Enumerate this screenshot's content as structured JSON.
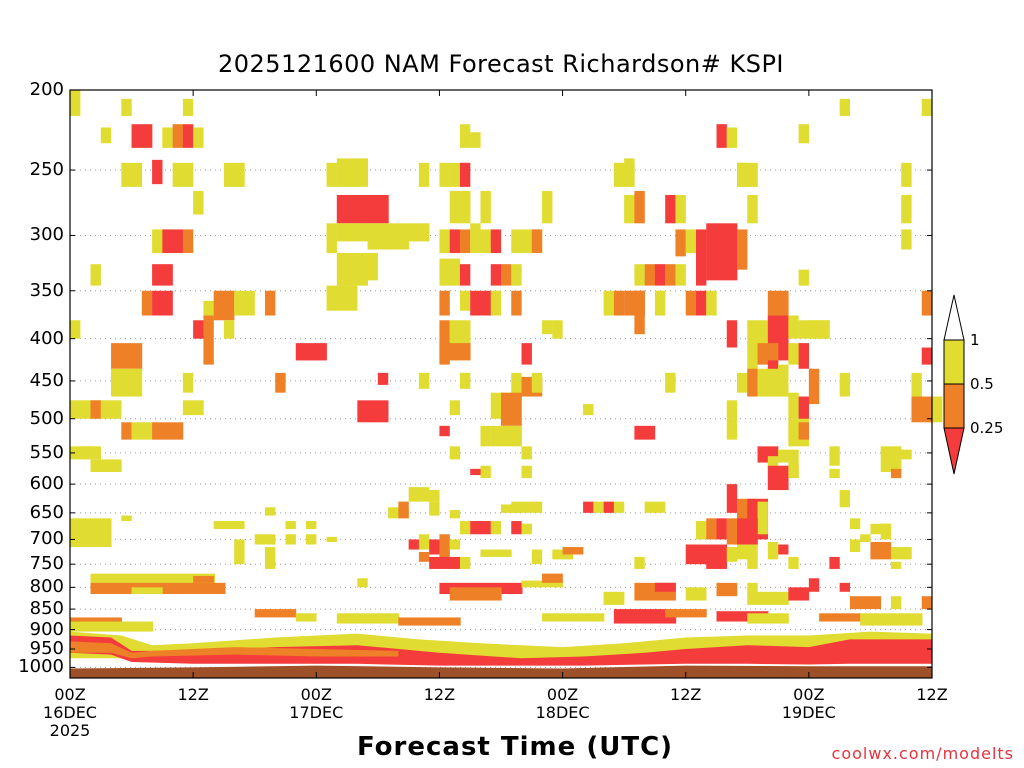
{
  "title": "2025121600 NAM Forecast Richardson# KSPI",
  "xlabel": "Forecast Time (UTC)",
  "credit": "coolwx.com/modelts",
  "colors": {
    "yellow": "#e0dc32",
    "orange": "#ee8028",
    "red": "#f43c3c",
    "ground": "#9e5028",
    "background": "#ffffff"
  },
  "chart_data": {
    "type": "heatmap",
    "title": "2025121600 NAM Forecast Richardson# KSPI",
    "xlabel": "Forecast Time (UTC)",
    "ylabel": "",
    "x_range_hours": [
      0,
      84
    ],
    "ylim": [
      1030,
      200
    ],
    "y_ticks": [
      {
        "value": 200,
        "label": "200"
      },
      {
        "value": 250,
        "label": "250"
      },
      {
        "value": 300,
        "label": "300"
      },
      {
        "value": 350,
        "label": "350"
      },
      {
        "value": 400,
        "label": "400"
      },
      {
        "value": 450,
        "label": "450"
      },
      {
        "value": 500,
        "label": "500"
      },
      {
        "value": 550,
        "label": "550"
      },
      {
        "value": 600,
        "label": "600"
      },
      {
        "value": 650,
        "label": "650"
      },
      {
        "value": 700,
        "label": "700"
      },
      {
        "value": 750,
        "label": "750"
      },
      {
        "value": 800,
        "label": "800"
      },
      {
        "value": 850,
        "label": "850"
      },
      {
        "value": 900,
        "label": "900"
      },
      {
        "value": 950,
        "label": "950"
      },
      {
        "value": 1000,
        "label": "1000"
      }
    ],
    "x_ticks": [
      {
        "hour": 0,
        "label": "00Z",
        "sub": "16DEC",
        "year": "2025"
      },
      {
        "hour": 12,
        "label": "12Z",
        "sub": "",
        "year": ""
      },
      {
        "hour": 24,
        "label": "00Z",
        "sub": "17DEC",
        "year": ""
      },
      {
        "hour": 36,
        "label": "12Z",
        "sub": "",
        "year": ""
      },
      {
        "hour": 48,
        "label": "00Z",
        "sub": "18DEC",
        "year": ""
      },
      {
        "hour": 60,
        "label": "12Z",
        "sub": "",
        "year": ""
      },
      {
        "hour": 72,
        "label": "00Z",
        "sub": "19DEC",
        "year": ""
      },
      {
        "hour": 84,
        "label": "12Z",
        "sub": "",
        "year": ""
      }
    ],
    "legend": {
      "placement": "right",
      "classes": [
        {
          "color": "#e0dc32",
          "range": [
            0.5,
            1
          ]
        },
        {
          "color": "#ee8028",
          "range": [
            0.25,
            0.5
          ]
        },
        {
          "color": "#f43c3c",
          "range": [
            null,
            0.25
          ]
        }
      ],
      "labels": [
        "1",
        "0.5",
        "0.25"
      ]
    },
    "grid": "dotted horizontal at labeled pressure levels"
  }
}
